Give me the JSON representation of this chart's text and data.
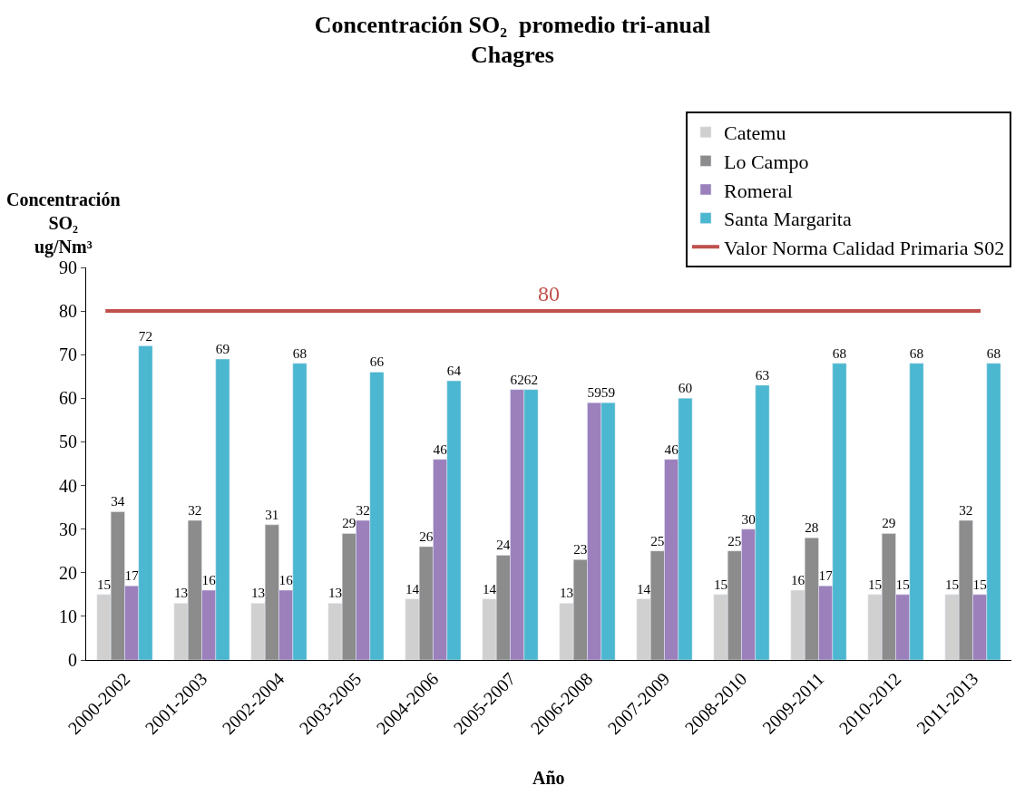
{
  "chart_data": {
    "type": "bar",
    "title": "Concentración SO₂  promedio tri-anual\nChagres",
    "xlabel": "Año",
    "ylabel": "Concentración\nSO₂\nug/Nm³",
    "categories": [
      "2000-2002",
      "2001-2003",
      "2002-2004",
      "2003-2005",
      "2004-2006",
      "2005-2007",
      "2006-2008",
      "2007-2009",
      "2008-2010",
      "2009-2011",
      "2010-2012",
      "2011-2013"
    ],
    "series": [
      {
        "name": "Catemu",
        "color": "#d0d0d0",
        "values": [
          15,
          13,
          13,
          13,
          14,
          14,
          13,
          14,
          15,
          16,
          15,
          15
        ]
      },
      {
        "name": "Lo Campo",
        "color": "#8c8c8c",
        "values": [
          34,
          32,
          31,
          29,
          26,
          24,
          23,
          25,
          25,
          28,
          29,
          32
        ]
      },
      {
        "name": "Romeral",
        "color": "#9b80bc",
        "values": [
          17,
          16,
          16,
          32,
          46,
          62,
          59,
          46,
          30,
          17,
          15,
          15
        ]
      },
      {
        "name": "Santa Margarita",
        "color": "#4bb7d0",
        "values": [
          72,
          69,
          68,
          66,
          64,
          62,
          59,
          60,
          63,
          68,
          68,
          68
        ]
      }
    ],
    "ref_lines": [
      {
        "axis": "y",
        "value": 80,
        "label": "Valor Norma Calidad Primaria S02",
        "color": "#c0504d"
      }
    ],
    "annotations": [
      {
        "text": "80",
        "y": 80
      }
    ],
    "ylim": [
      0,
      90
    ],
    "yticks": [
      0,
      10,
      20,
      30,
      40,
      50,
      60,
      70,
      80,
      90
    ],
    "data_labels": true,
    "legend": "top right"
  }
}
